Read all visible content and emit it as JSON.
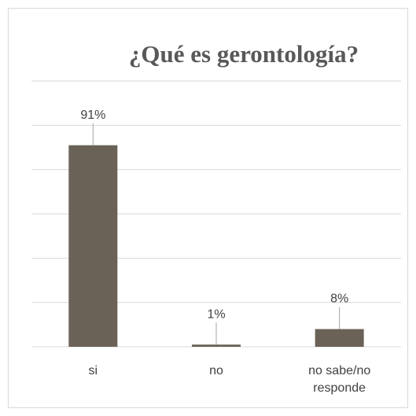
{
  "chart_data": {
    "type": "bar",
    "title": "¿Qué es gerontología?",
    "categories": [
      "si",
      "no",
      "no sabe/no responde"
    ],
    "values": [
      91,
      1,
      8
    ],
    "value_labels": [
      "91%",
      "1%",
      "8%"
    ],
    "color": "#6b6257",
    "ylim": [
      0,
      120
    ],
    "yticks": [
      0,
      20,
      40,
      60,
      80,
      100,
      120
    ],
    "grid": true
  }
}
